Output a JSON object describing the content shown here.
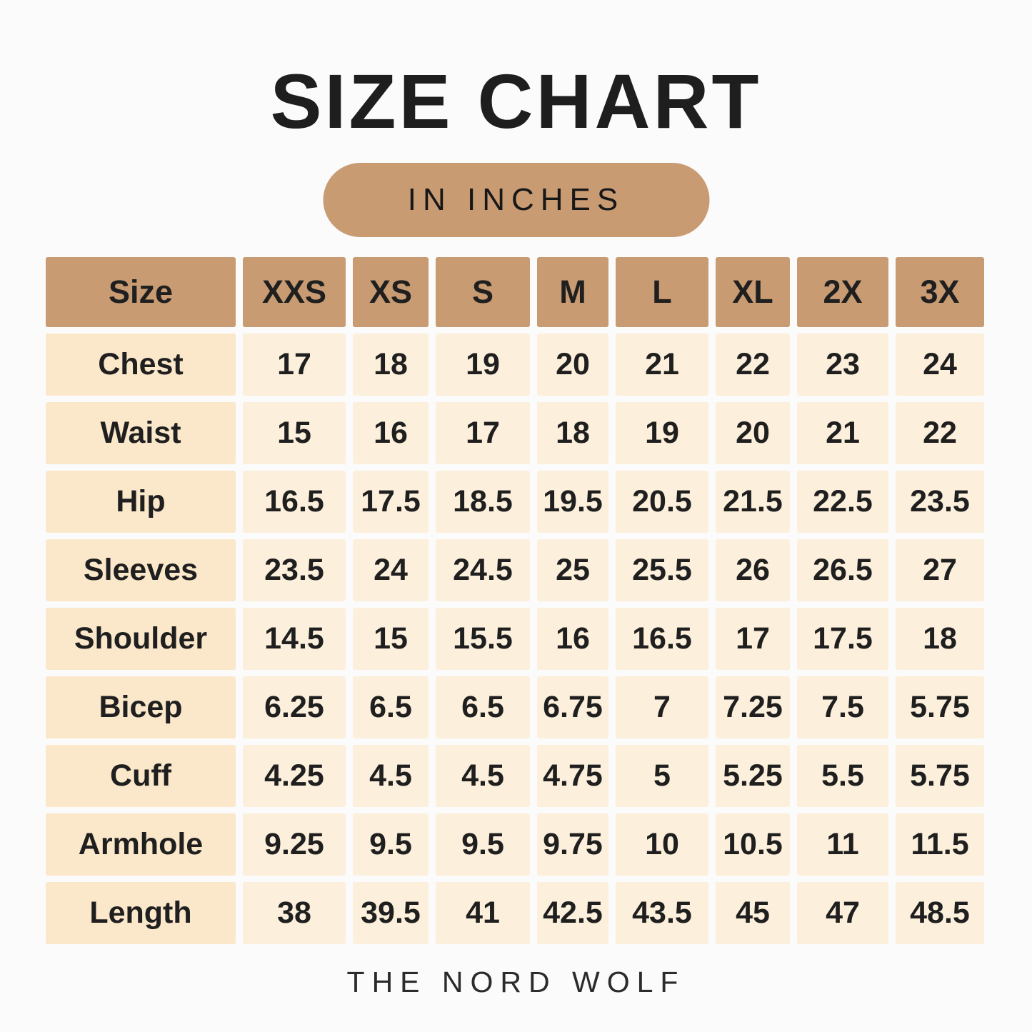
{
  "page": {
    "title": "SIZE CHART",
    "badge_label": "IN INCHES",
    "footer_brand": "THE NORD WOLF"
  },
  "colors": {
    "background": "#FBFBFB",
    "header_and_badge_bg": "#C89B72",
    "row_label_cell_bg": "#FBE7CA",
    "value_cell_bg": "#FCEFDB",
    "text": "#1F1F1F"
  },
  "chart_data": {
    "type": "table",
    "title": "SIZE CHART",
    "unit": "IN INCHES",
    "columns": [
      "Size",
      "XXS",
      "XS",
      "S",
      "M",
      "L",
      "XL",
      "2X",
      "3X"
    ],
    "rows": [
      {
        "label": "Chest",
        "values": [
          "17",
          "18",
          "19",
          "20",
          "21",
          "22",
          "23",
          "24"
        ]
      },
      {
        "label": "Waist",
        "values": [
          "15",
          "16",
          "17",
          "18",
          "19",
          "20",
          "21",
          "22"
        ]
      },
      {
        "label": "Hip",
        "values": [
          "16.5",
          "17.5",
          "18.5",
          "19.5",
          "20.5",
          "21.5",
          "22.5",
          "23.5"
        ]
      },
      {
        "label": "Sleeves",
        "values": [
          "23.5",
          "24",
          "24.5",
          "25",
          "25.5",
          "26",
          "26.5",
          "27"
        ]
      },
      {
        "label": "Shoulder",
        "values": [
          "14.5",
          "15",
          "15.5",
          "16",
          "16.5",
          "17",
          "17.5",
          "18"
        ]
      },
      {
        "label": "Bicep",
        "values": [
          "6.25",
          "6.5",
          "6.5",
          "6.75",
          "7",
          "7.25",
          "7.5",
          "5.75"
        ]
      },
      {
        "label": "Cuff",
        "values": [
          "4.25",
          "4.5",
          "4.5",
          "4.75",
          "5",
          "5.25",
          "5.5",
          "5.75"
        ]
      },
      {
        "label": "Armhole",
        "values": [
          "9.25",
          "9.5",
          "9.5",
          "9.75",
          "10",
          "10.5",
          "11",
          "11.5"
        ]
      },
      {
        "label": "Length",
        "values": [
          "38",
          "39.5",
          "41",
          "42.5",
          "43.5",
          "45",
          "47",
          "48.5"
        ]
      }
    ]
  }
}
